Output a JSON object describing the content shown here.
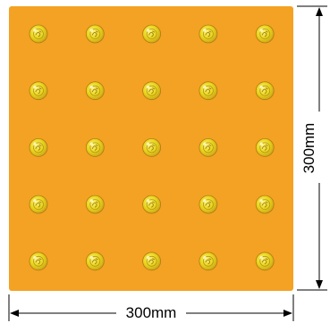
{
  "tile": {
    "color": "#F4A223",
    "rows": 5,
    "columns": 5,
    "dot_color": "#E9D61C",
    "dot_ring_color": "#B07A16"
  },
  "dimensions": {
    "width_label": "300mm",
    "height_label": "300mm"
  }
}
